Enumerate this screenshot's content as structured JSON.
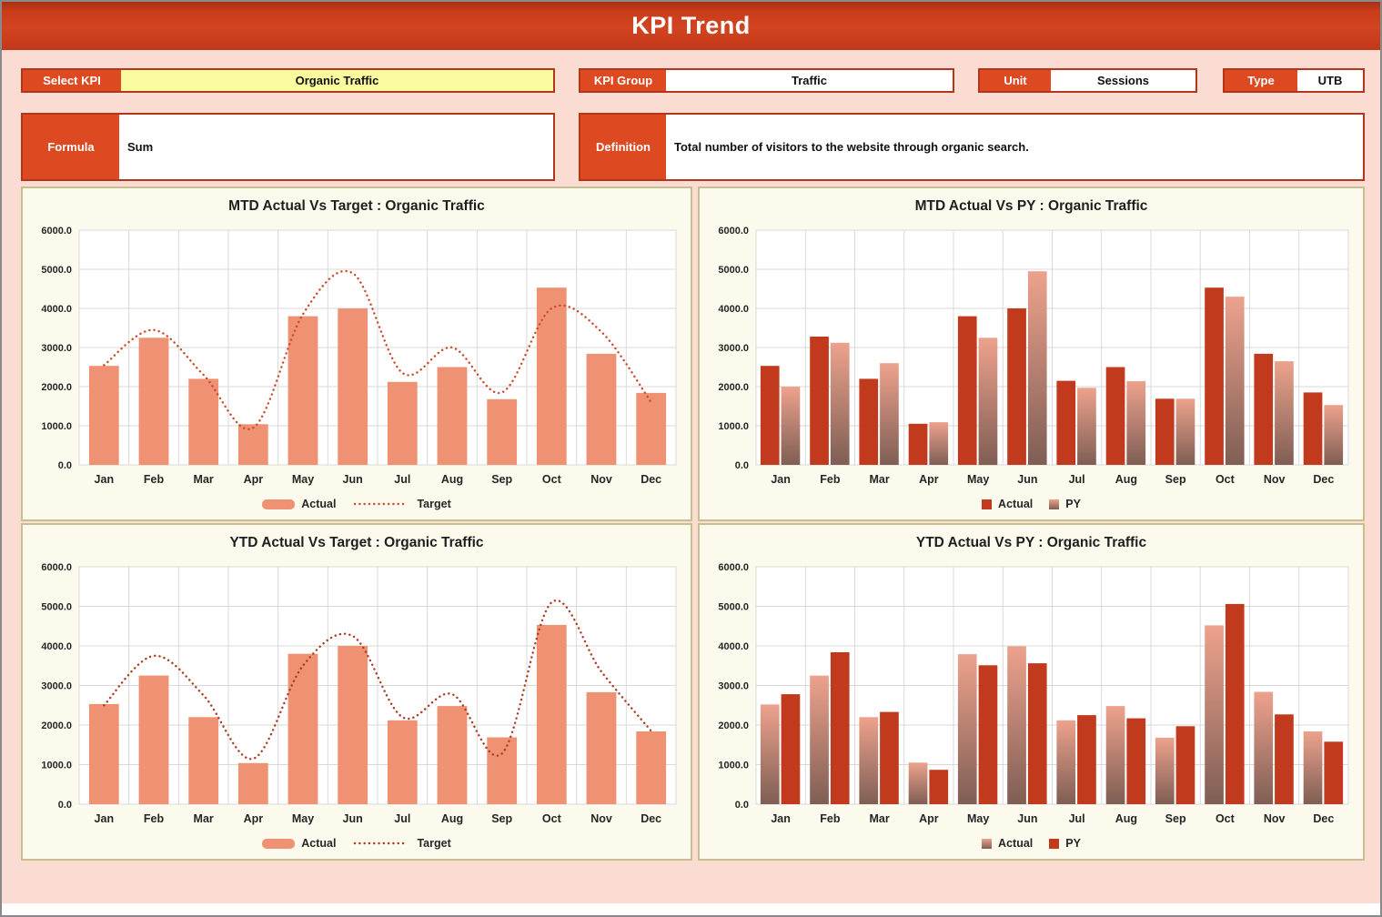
{
  "header": {
    "title": "KPI Trend"
  },
  "controls": {
    "select_kpi": {
      "label": "Select KPI",
      "value": "Organic Traffic"
    },
    "kpi_group": {
      "label": "KPI Group",
      "value": "Traffic"
    },
    "unit": {
      "label": "Unit",
      "value": "Sessions"
    },
    "type": {
      "label": "Type",
      "value": "UTB"
    },
    "formula": {
      "label": "Formula",
      "value": "Sum"
    },
    "definition": {
      "label": "Definition",
      "value": "Total number of visitors to the website through organic search."
    }
  },
  "colors": {
    "header_orange": "#CE3E1C",
    "label_orange": "#DD4A22",
    "select_yellow": "#FAFA9E",
    "background_pink": "#FADCD2",
    "panel_cream": "#FCF9ED",
    "panel_border": "#C7BF8F",
    "grid": "#D9D9D9",
    "salmon": "#EF9173",
    "dark_red": "#C23A1D",
    "gradient_top": "#EDA28D",
    "gradient_bottom": "#7F5E54",
    "dotted": "#C33D20"
  },
  "chart_data": [
    {
      "type": "bar",
      "title": "MTD Actual Vs Target : Organic Traffic",
      "categories": [
        "Jan",
        "Feb",
        "Mar",
        "Apr",
        "May",
        "Jun",
        "Jul",
        "Aug",
        "Sep",
        "Oct",
        "Nov",
        "Dec"
      ],
      "series": [
        {
          "name": "Actual",
          "style": "salmon",
          "values": [
            2530,
            3250,
            2200,
            1040,
            3800,
            4000,
            2120,
            2500,
            1680,
            4530,
            2840,
            1840
          ]
        },
        {
          "name": "Target",
          "style": "dotted-line",
          "color": "#CC4A2B",
          "values": [
            2550,
            3450,
            2300,
            950,
            3850,
            4900,
            2350,
            3000,
            1850,
            4000,
            3400,
            1600
          ]
        }
      ],
      "xlabel": "",
      "ylabel": "",
      "ylim": [
        0,
        6000
      ],
      "ytick": 1000,
      "grid": true,
      "legend_position": "bottom"
    },
    {
      "type": "bar",
      "title": "MTD Actual Vs PY : Organic Traffic",
      "categories": [
        "Jan",
        "Feb",
        "Mar",
        "Apr",
        "May",
        "Jun",
        "Jul",
        "Aug",
        "Sep",
        "Oct",
        "Nov",
        "Dec"
      ],
      "series": [
        {
          "name": "Actual",
          "style": "solid-dark",
          "values": [
            2530,
            3280,
            2200,
            1050,
            3800,
            4000,
            2150,
            2500,
            1690,
            4530,
            2840,
            1850
          ]
        },
        {
          "name": "PY",
          "style": "gradient",
          "values": [
            2000,
            3120,
            2600,
            1090,
            3250,
            4950,
            1970,
            2140,
            1690,
            4300,
            2650,
            1530
          ]
        }
      ],
      "xlabel": "",
      "ylabel": "",
      "ylim": [
        0,
        6000
      ],
      "ytick": 1000,
      "grid": true,
      "legend_position": "bottom"
    },
    {
      "type": "bar",
      "title": "YTD Actual Vs Target : Organic Traffic",
      "categories": [
        "Jan",
        "Feb",
        "Mar",
        "Apr",
        "May",
        "Jun",
        "Jul",
        "Aug",
        "Sep",
        "Oct",
        "Nov",
        "Dec"
      ],
      "series": [
        {
          "name": "Actual",
          "style": "salmon",
          "values": [
            2530,
            3250,
            2200,
            1040,
            3800,
            4000,
            2120,
            2480,
            1690,
            4530,
            2830,
            1840
          ]
        },
        {
          "name": "Target",
          "style": "dotted-line",
          "color": "#A93C22",
          "values": [
            2500,
            3750,
            2750,
            1150,
            3500,
            4250,
            2200,
            2780,
            1280,
            5100,
            3350,
            1850
          ]
        }
      ],
      "xlabel": "",
      "ylabel": "",
      "ylim": [
        0,
        6000
      ],
      "ytick": 1000,
      "grid": true,
      "legend_position": "bottom"
    },
    {
      "type": "bar",
      "title": "YTD Actual Vs PY : Organic Traffic",
      "categories": [
        "Jan",
        "Feb",
        "Mar",
        "Apr",
        "May",
        "Jun",
        "Jul",
        "Aug",
        "Sep",
        "Oct",
        "Nov",
        "Dec"
      ],
      "series": [
        {
          "name": "Actual",
          "style": "gradient",
          "values": [
            2520,
            3250,
            2200,
            1050,
            3790,
            3990,
            2120,
            2480,
            1680,
            4520,
            2840,
            1840
          ]
        },
        {
          "name": "PY",
          "style": "solid-dark",
          "values": [
            2780,
            3840,
            2330,
            870,
            3510,
            3560,
            2250,
            2170,
            1970,
            5060,
            2270,
            1580
          ]
        }
      ],
      "xlabel": "",
      "ylabel": "",
      "ylim": [
        0,
        6000
      ],
      "ytick": 1000,
      "grid": true,
      "legend_position": "bottom"
    }
  ]
}
